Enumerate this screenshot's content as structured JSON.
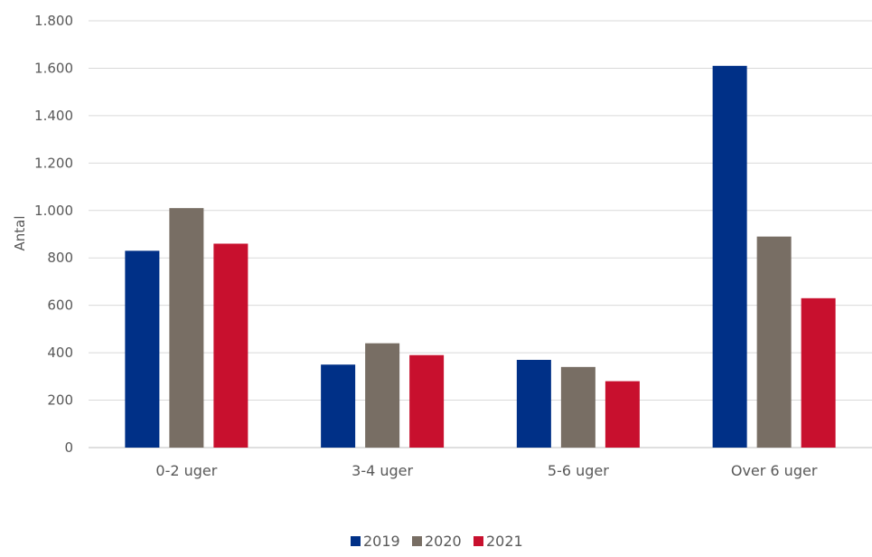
{
  "chart_data": {
    "type": "bar",
    "categories": [
      "0-2 uger",
      "3-4 uger",
      "5-6 uger",
      "Over 6 uger"
    ],
    "series": [
      {
        "name": "2019",
        "color": "#003087",
        "values": [
          830,
          350,
          370,
          1610
        ]
      },
      {
        "name": "2020",
        "color": "#786e64",
        "values": [
          1010,
          440,
          340,
          890
        ]
      },
      {
        "name": "2021",
        "color": "#c8102e",
        "values": [
          860,
          390,
          280,
          630
        ]
      }
    ],
    "title": "",
    "xlabel": "",
    "ylabel": "Antal",
    "ylim": [
      0,
      1800
    ],
    "yticks": [
      0,
      200,
      400,
      600,
      800,
      1000,
      1200,
      1400,
      1600,
      1800
    ],
    "ytick_labels": [
      "0",
      "200",
      "400",
      "600",
      "800",
      "1.000",
      "1.200",
      "1.400",
      "1.600",
      "1.800"
    ],
    "grid": true,
    "legend_position": "bottom"
  }
}
